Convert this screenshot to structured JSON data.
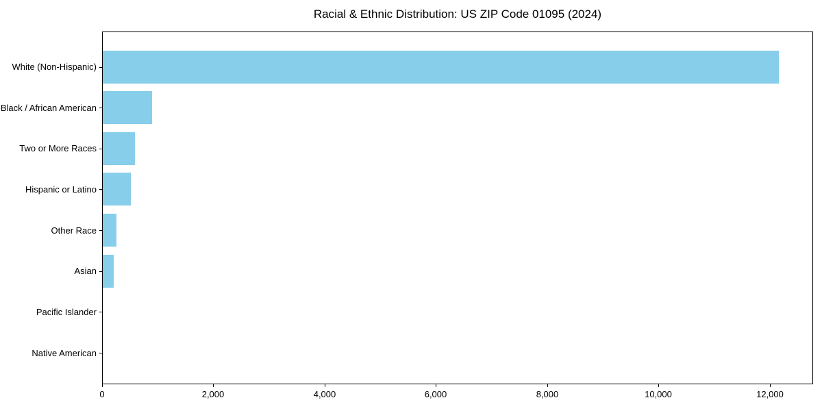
{
  "chart_data": {
    "type": "bar",
    "orientation": "horizontal",
    "title": "Racial & Ethnic Distribution: US ZIP Code 01095 (2024)",
    "categories": [
      "White (Non-Hispanic)",
      "Black / African American",
      "Two or More Races",
      "Hispanic or Latino",
      "Other Race",
      "Asian",
      "Pacific Islander",
      "Native American"
    ],
    "values": [
      12155,
      885,
      580,
      505,
      245,
      195,
      0,
      0
    ],
    "bar_color": "#87CEEB",
    "xlabel": "",
    "ylabel": "",
    "xlim": [
      0,
      12780
    ],
    "x_ticks": [
      0,
      2000,
      4000,
      6000,
      8000,
      10000,
      12000
    ],
    "x_tick_labels": [
      "0",
      "2,000",
      "4,000",
      "6,000",
      "8,000",
      "10,000",
      "12,000"
    ],
    "grid": false,
    "legend": null
  }
}
